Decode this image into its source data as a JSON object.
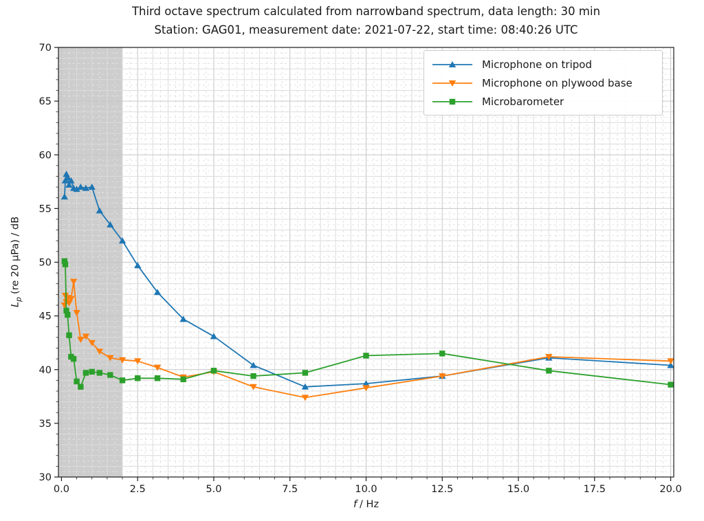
{
  "title": {
    "line1": "Third octave spectrum calculated from narrowband spectrum, data length: 30 min",
    "line2": "Station: GAG01, measurement date: 2021-07-22, start time: 08:40:26 UTC"
  },
  "axis": {
    "xlabel": {
      "var": "f",
      "rest": "/ Hz"
    },
    "ylabel": {
      "var": "L",
      "sub": "p",
      "rest": "(re 20 μPa) / dB"
    },
    "xtick_labels": [
      "0.0",
      "2.5",
      "5.0",
      "7.5",
      "10.0",
      "12.5",
      "15.0",
      "17.5",
      "20.0"
    ],
    "ytick_labels": [
      "30",
      "35",
      "40",
      "45",
      "50",
      "55",
      "60",
      "65",
      "70"
    ]
  },
  "chart_data": {
    "type": "line",
    "title": "Third octave spectrum calculated from narrowband spectrum",
    "xlabel": "f / Hz",
    "ylabel": "Lp (re 20 uPa) / dB",
    "xlim": [
      -0.1,
      20.1
    ],
    "ylim": [
      30,
      70
    ],
    "xticks": [
      0.0,
      2.5,
      5.0,
      7.5,
      10.0,
      12.5,
      15.0,
      17.5,
      20.0
    ],
    "yticks": [
      30,
      35,
      40,
      45,
      50,
      55,
      60,
      65,
      70
    ],
    "grid": {
      "visible": true,
      "minor_x_step": 0.25,
      "minor_y_step": 0.5,
      "major_x_step": 2.5,
      "major_y_step": 5
    },
    "legend_position": "upper right",
    "shaded_band": {
      "x0": 0.0,
      "x1": 2.0,
      "color": "#cdcdcd"
    },
    "x": [
      0.1,
      0.125,
      0.16,
      0.2,
      0.25,
      0.315,
      0.4,
      0.5,
      0.63,
      0.8,
      1.0,
      1.25,
      1.6,
      2.0,
      2.5,
      3.15,
      4.0,
      5.0,
      6.3,
      8.0,
      10.0,
      12.5,
      16.0,
      20.0
    ],
    "series": [
      {
        "name": "Microphone on tripod",
        "color": "#1f77b4",
        "marker": "triangle-up",
        "values": [
          56.1,
          57.6,
          58.2,
          57.9,
          57.2,
          57.6,
          56.9,
          56.8,
          57.0,
          56.9,
          57.0,
          54.8,
          53.5,
          52.0,
          49.7,
          47.2,
          44.7,
          43.1,
          40.4,
          38.4,
          38.7,
          39.4,
          41.1,
          40.4
        ]
      },
      {
        "name": "Microphone on plywood base",
        "color": "#ff7f0e",
        "marker": "triangle-down",
        "values": [
          46.0,
          46.9,
          46.3,
          46.7,
          46.2,
          46.6,
          48.2,
          45.3,
          42.8,
          43.1,
          42.5,
          41.7,
          41.1,
          40.9,
          40.8,
          40.2,
          39.3,
          39.8,
          38.4,
          37.4,
          38.3,
          39.4,
          41.2,
          40.8
        ]
      },
      {
        "name": "Microbarometer",
        "color": "#2ca02c",
        "marker": "square",
        "values": [
          50.1,
          49.8,
          45.5,
          45.1,
          43.2,
          41.2,
          41.0,
          38.9,
          38.4,
          39.7,
          39.8,
          39.7,
          39.5,
          39.0,
          39.2,
          39.2,
          39.1,
          39.9,
          39.4,
          39.7,
          41.3,
          41.5,
          39.9,
          38.6
        ]
      }
    ]
  }
}
